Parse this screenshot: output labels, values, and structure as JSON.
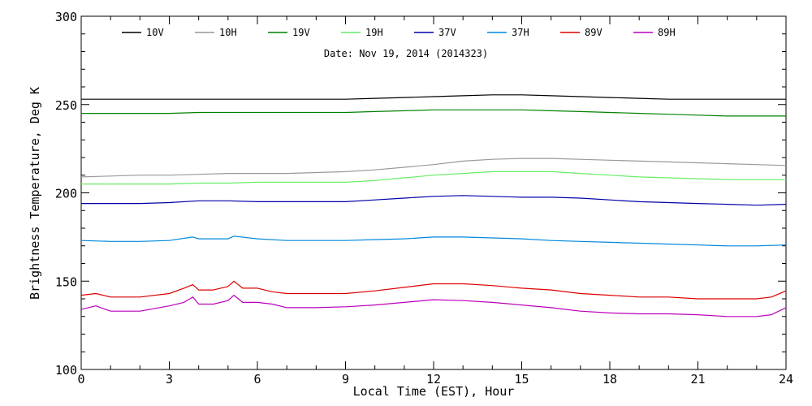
{
  "chart_data": {
    "type": "line",
    "title": "Date: Nov 19, 2014 (2014323)",
    "xlabel": "Local Time (EST), Hour",
    "ylabel": "Brightness Temperature, Deg K",
    "xlim": [
      0,
      24
    ],
    "ylim": [
      100,
      300
    ],
    "xticks": [
      0,
      3,
      6,
      9,
      12,
      15,
      18,
      21,
      24
    ],
    "yticks": [
      100,
      150,
      200,
      250,
      300
    ],
    "grid": false,
    "legend_position": "top",
    "series": [
      {
        "name": "10V",
        "color": "#000000",
        "x": [
          0,
          1,
          2,
          3,
          4,
          5,
          6,
          7,
          8,
          9,
          10,
          11,
          12,
          13,
          14,
          15,
          16,
          17,
          18,
          19,
          20,
          21,
          22,
          23,
          24
        ],
        "y": [
          253,
          253,
          253,
          253,
          253,
          253,
          253,
          253,
          253,
          253,
          253.5,
          254,
          254.5,
          255,
          255.5,
          255.5,
          255,
          254.5,
          254,
          253.5,
          253,
          253,
          253,
          253,
          253
        ]
      },
      {
        "name": "10H",
        "color": "#999999",
        "x": [
          0,
          1,
          2,
          3,
          4,
          5,
          6,
          7,
          8,
          9,
          10,
          11,
          12,
          13,
          14,
          15,
          16,
          17,
          18,
          19,
          20,
          21,
          22,
          23,
          24
        ],
        "y": [
          209,
          209.5,
          210,
          210,
          210.5,
          211,
          211,
          211,
          211.5,
          212,
          213,
          214.5,
          216,
          218,
          219,
          219.5,
          219.5,
          219,
          218.5,
          218,
          217.5,
          217,
          216.5,
          216,
          215.5
        ]
      },
      {
        "name": "19V",
        "color": "#008000",
        "x": [
          0,
          1,
          2,
          3,
          4,
          5,
          6,
          7,
          8,
          9,
          10,
          11,
          12,
          13,
          14,
          15,
          16,
          17,
          18,
          19,
          20,
          21,
          22,
          23,
          24
        ],
        "y": [
          245,
          245,
          245,
          245,
          245.5,
          245.5,
          245.5,
          245.5,
          245.5,
          245.5,
          246,
          246.5,
          247,
          247,
          247,
          247,
          246.5,
          246,
          245.5,
          245,
          244.5,
          244,
          243.5,
          243.5,
          243.5
        ]
      },
      {
        "name": "19H",
        "color": "#66ee66",
        "x": [
          0,
          1,
          2,
          3,
          4,
          5,
          6,
          7,
          8,
          9,
          10,
          11,
          12,
          13,
          14,
          15,
          16,
          17,
          18,
          19,
          20,
          21,
          22,
          23,
          24
        ],
        "y": [
          205,
          205,
          205,
          205,
          205.5,
          205.5,
          206,
          206,
          206,
          206,
          207,
          208.5,
          210,
          211,
          212,
          212,
          212,
          211,
          210,
          209,
          208.5,
          208,
          207.5,
          207.5,
          207.5
        ]
      },
      {
        "name": "37V",
        "color": "#0000aa",
        "x": [
          0,
          1,
          2,
          3,
          4,
          5,
          6,
          7,
          8,
          9,
          10,
          11,
          12,
          13,
          14,
          15,
          16,
          17,
          18,
          19,
          20,
          21,
          22,
          23,
          24
        ],
        "y": [
          194,
          194,
          194,
          194.5,
          195.5,
          195.5,
          195,
          195,
          195,
          195,
          196,
          197,
          198,
          198.5,
          198,
          197.5,
          197.5,
          197,
          196,
          195,
          194.5,
          194,
          193.5,
          193,
          193.5
        ]
      },
      {
        "name": "37H",
        "color": "#0088dd",
        "x": [
          0,
          1,
          2,
          3,
          3.8,
          4,
          5,
          5.2,
          6,
          7,
          8,
          9,
          10,
          11,
          12,
          13,
          14,
          15,
          16,
          17,
          18,
          19,
          20,
          21,
          22,
          23,
          24
        ],
        "y": [
          173,
          172.5,
          172.5,
          173,
          175,
          174,
          174,
          175.5,
          174,
          173,
          173,
          173,
          173.5,
          174,
          175,
          175,
          174.5,
          174,
          173,
          172.5,
          172,
          171.5,
          171,
          170.5,
          170,
          170,
          170.5
        ]
      },
      {
        "name": "89V",
        "color": "#dd0000",
        "x": [
          0,
          0.5,
          1,
          2,
          3,
          3.5,
          3.8,
          4,
          4.5,
          5,
          5.2,
          5.5,
          6,
          6.5,
          7,
          8,
          9,
          10,
          11,
          12,
          13,
          14,
          15,
          16,
          17,
          18,
          19,
          20,
          21,
          22,
          23,
          23.5,
          24
        ],
        "y": [
          142,
          143,
          141,
          141,
          143,
          146,
          148,
          145,
          145,
          147,
          150,
          146,
          146,
          144,
          143,
          143,
          143,
          144.5,
          146.5,
          148.5,
          148.5,
          147.5,
          146,
          145,
          143,
          142,
          141,
          141,
          140,
          140,
          140,
          141,
          144.5
        ]
      },
      {
        "name": "89H",
        "color": "#bb00bb",
        "x": [
          0,
          0.5,
          1,
          2,
          3,
          3.5,
          3.8,
          4,
          4.5,
          5,
          5.2,
          5.5,
          6,
          6.5,
          7,
          8,
          9,
          10,
          11,
          12,
          13,
          14,
          15,
          16,
          17,
          18,
          19,
          20,
          21,
          22,
          23,
          23.5,
          24
        ],
        "y": [
          134,
          136,
          133,
          133,
          136,
          138,
          141,
          137,
          137,
          139,
          142,
          138,
          138,
          137,
          135,
          135,
          135.5,
          136.5,
          138,
          139.5,
          139,
          138,
          136.5,
          135,
          133,
          132,
          131.5,
          131.5,
          131,
          130,
          130,
          131,
          135
        ]
      }
    ]
  }
}
